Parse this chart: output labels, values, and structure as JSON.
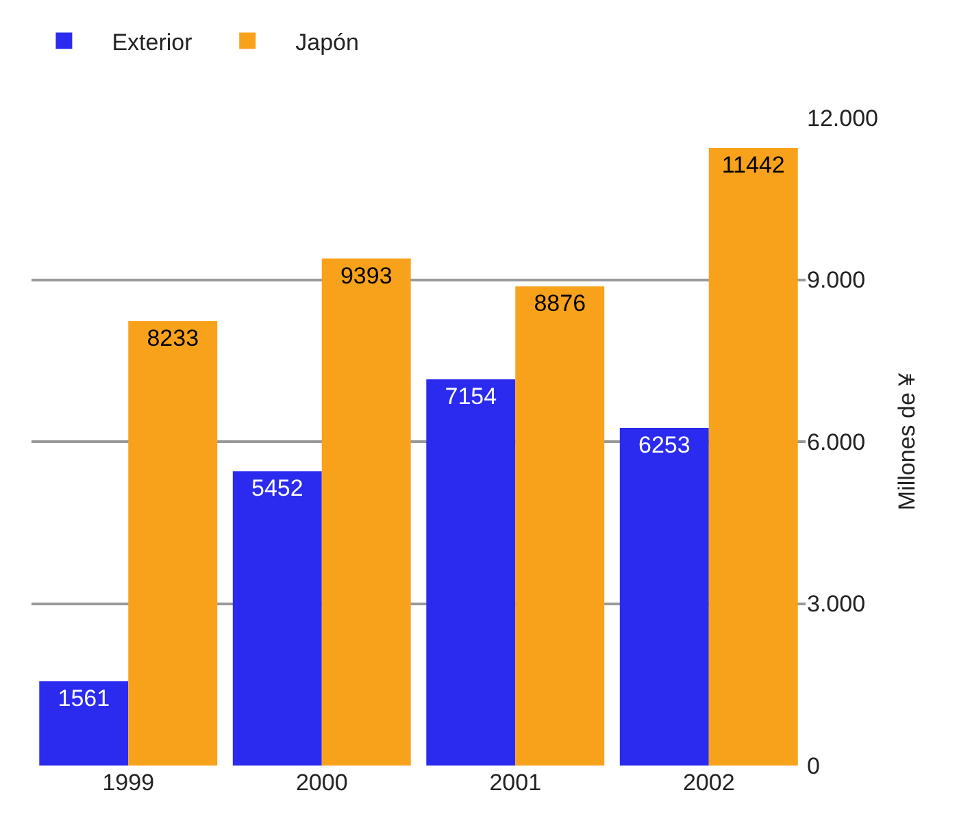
{
  "chart_data": {
    "type": "bar",
    "ylabel": "Millones de ¥",
    "categories": [
      "1999",
      "2000",
      "2001",
      "2002"
    ],
    "series": [
      {
        "name": "Exterior",
        "color": "#2b2bef",
        "values": [
          1561,
          5452,
          7154,
          6253
        ]
      },
      {
        "name": "Japón",
        "color": "#f8a21c",
        "values": [
          8233,
          9393,
          8876,
          11442
        ]
      }
    ],
    "ylim": [
      0,
      12000
    ],
    "yticks": [
      0,
      {
        "value": 3000,
        "label": "3.000"
      },
      {
        "value": 6000,
        "label": "6.000"
      },
      {
        "value": 9000,
        "label": "9.000"
      },
      {
        "value": 12000,
        "label": "12.000"
      }
    ],
    "data_labels": true,
    "grid": "y",
    "legend": "top left"
  }
}
